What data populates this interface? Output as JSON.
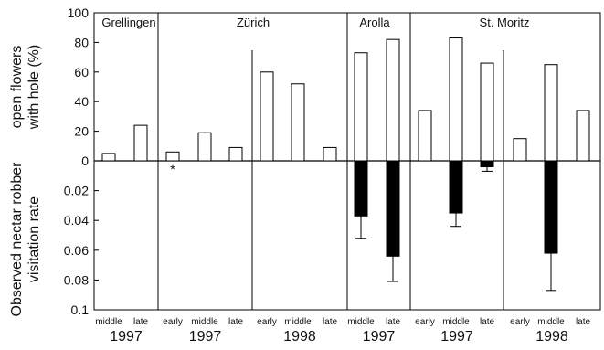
{
  "chart_data": {
    "type": "bar",
    "top_panel": {
      "ylabel_lines": [
        "open flowers",
        "with hole (%)"
      ],
      "ylim": [
        0,
        100
      ],
      "ticks": [
        "0",
        "20",
        "40",
        "60",
        "80",
        "100"
      ]
    },
    "bottom_panel": {
      "ylabel_lines": [
        "Observed nectar robber",
        "visitation rate"
      ],
      "ylim": [
        0,
        0.1
      ],
      "ticks": [
        "0.02",
        "0.04",
        "0.06",
        "0.08",
        "0.1"
      ]
    },
    "sites": [
      {
        "name": "Grellingen"
      },
      {
        "name": "Zürich"
      },
      {
        "name": "Arolla"
      },
      {
        "name": "St. Moritz"
      }
    ],
    "groups": [
      {
        "site": "Grellingen",
        "year": "1997",
        "categories": [
          "middle",
          "late"
        ],
        "open_holes": [
          5,
          24
        ],
        "robber_rate": [
          null,
          null
        ],
        "robber_err": [
          null,
          null
        ]
      },
      {
        "site": "Zürich",
        "year": "1997",
        "categories": [
          "early",
          "middle",
          "late"
        ],
        "open_holes": [
          6,
          19,
          9
        ],
        "robber_rate": [
          null,
          null,
          null
        ],
        "robber_err": [
          null,
          null,
          null
        ]
      },
      {
        "site": "Zürich",
        "year": "1998",
        "categories": [
          "early",
          "middle",
          "late"
        ],
        "open_holes": [
          60,
          52,
          9
        ],
        "robber_rate": [
          null,
          null,
          null
        ],
        "robber_err": [
          null,
          null,
          null
        ]
      },
      {
        "site": "Arolla",
        "year": "1997",
        "categories": [
          "middle",
          "late"
        ],
        "open_holes": [
          73,
          82
        ],
        "robber_rate": [
          0.037,
          0.064
        ],
        "robber_err": [
          0.015,
          0.017
        ]
      },
      {
        "site": "St. Moritz",
        "year": "1997",
        "categories": [
          "early",
          "middle",
          "late"
        ],
        "open_holes": [
          34,
          83,
          66
        ],
        "robber_rate": [
          null,
          0.035,
          0.004
        ],
        "robber_err": [
          null,
          0.009,
          0.003
        ]
      },
      {
        "site": "St. Moritz",
        "year": "1998",
        "categories": [
          "early",
          "middle",
          "late"
        ],
        "open_holes": [
          15,
          65,
          34
        ],
        "robber_rate": [
          null,
          0.062,
          null
        ],
        "robber_err": [
          null,
          0.025,
          null
        ]
      }
    ],
    "annotations": [
      {
        "text": "*",
        "group": 1,
        "bar": 0
      }
    ],
    "colors": {
      "top_bars": "#ffffff",
      "bottom_bars": "#000000",
      "axis": "#000000"
    }
  }
}
